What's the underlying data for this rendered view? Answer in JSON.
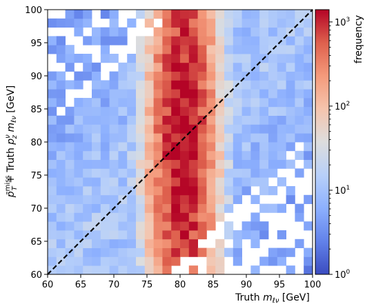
{
  "chart_data": {
    "type": "heatmap",
    "title": "",
    "xlabel": "Truth m_{ℓν} [GeV]",
    "ylabel": "p̄_T^miss + Truth p_z^ν m_{ℓν} [GeV]",
    "xlim": [
      60,
      100
    ],
    "ylim": [
      60,
      100
    ],
    "x_ticks": [
      60,
      65,
      70,
      75,
      80,
      85,
      90,
      95,
      100
    ],
    "y_ticks": [
      60,
      65,
      70,
      75,
      80,
      85,
      90,
      95,
      100
    ],
    "bin_width_gev": 1.3333,
    "bins_x": 30,
    "bins_y": 30,
    "colormap": "coolwarm",
    "colorbar": {
      "label": "frequency",
      "scale": "log",
      "range": [
        1,
        1400
      ],
      "ticks": [
        {
          "base": "10",
          "exp": "0",
          "value": 1
        },
        {
          "base": "10",
          "exp": "1",
          "value": 10
        },
        {
          "base": "10",
          "exp": "2",
          "value": 100
        },
        {
          "base": "10",
          "exp": "3",
          "value": 1000
        }
      ]
    },
    "distribution": {
      "peak_x_gev": 80.4,
      "peak_y_gev": 80.0,
      "peak_frequency": 1300,
      "background_frequency_near_diagonal": 12,
      "empty_regions": "lower-right and upper-left corners"
    },
    "overlay": {
      "type": "dashed line",
      "from": [
        60,
        60
      ],
      "to": [
        100,
        100
      ],
      "color": "#000000"
    }
  }
}
